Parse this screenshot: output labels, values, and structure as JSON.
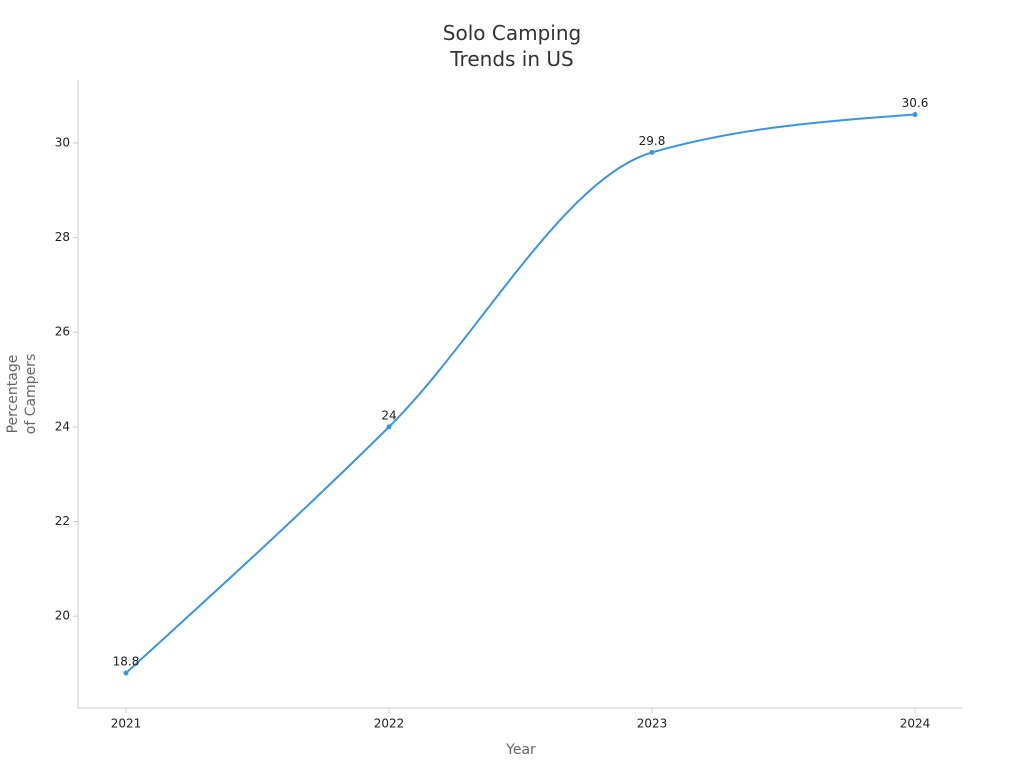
{
  "chart_data": {
    "type": "line",
    "title": "Solo Camping\nTrends in US",
    "x_label": "Year",
    "y_label": "Percentage\nof Campers",
    "categories": [
      "2021",
      "2022",
      "2023",
      "2024"
    ],
    "series": [
      {
        "name": "Percentage of Campers",
        "color": "#3a95e0",
        "values": [
          18.8,
          24,
          29.8,
          30.6
        ]
      }
    ],
    "ylim": [
      18.06,
      31.33
    ],
    "yticks": [
      20,
      22,
      24,
      26,
      28,
      30
    ],
    "curve": "smooth",
    "grid": false
  }
}
